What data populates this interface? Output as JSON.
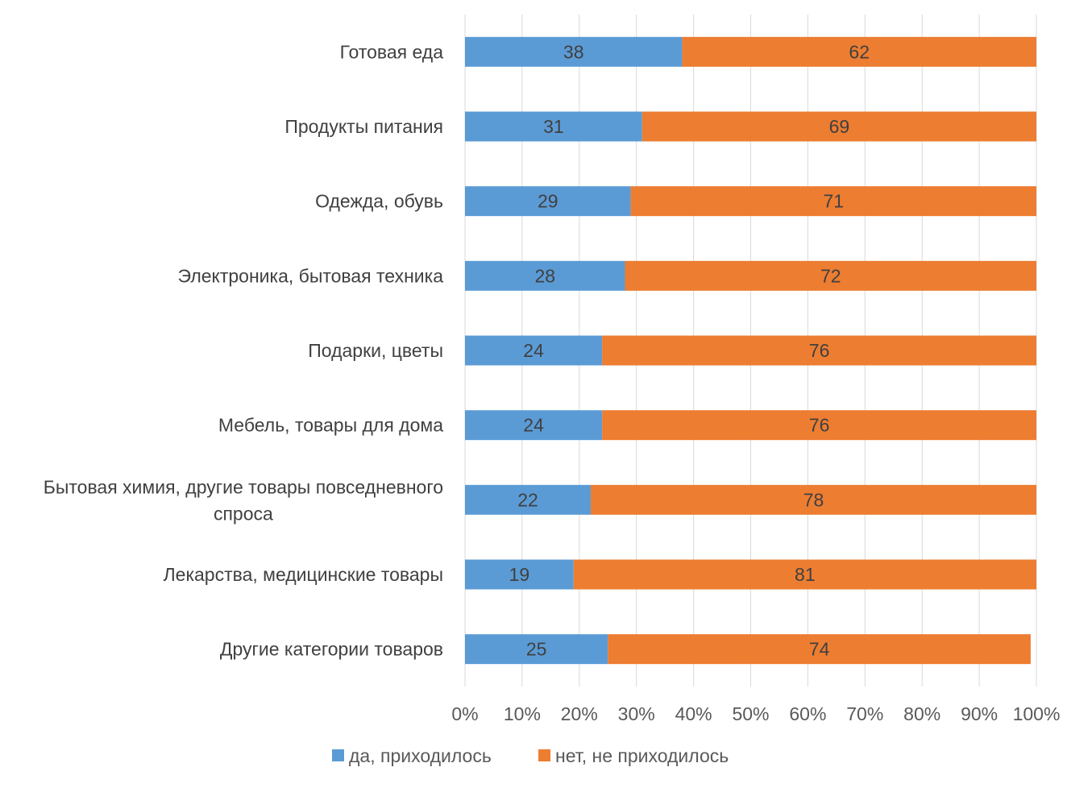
{
  "chart_data": {
    "type": "bar",
    "orientation": "horizontal",
    "stacked": "percent",
    "categories": [
      "Готовая еда",
      "Продукты питания",
      "Одежда, обувь",
      "Электроника, бытовая техника",
      "Подарки, цветы",
      "Мебель, товары для дома",
      "Бытовая химия, другие товары повседневного спроса",
      "Лекарства, медицинские товары",
      "Другие категории товаров"
    ],
    "series": [
      {
        "name": "да, приходилось",
        "color": "#5B9BD5",
        "values": [
          38,
          31,
          29,
          28,
          24,
          24,
          22,
          19,
          25
        ]
      },
      {
        "name": "нет, не приходилось",
        "color": "#ED7D31",
        "values": [
          62,
          69,
          71,
          72,
          76,
          76,
          78,
          81,
          74
        ]
      }
    ],
    "x_ticks": [
      "0%",
      "10%",
      "20%",
      "30%",
      "40%",
      "50%",
      "60%",
      "70%",
      "80%",
      "90%",
      "100%"
    ],
    "xlim": [
      0,
      100
    ],
    "grid": "vertical",
    "legend": "bottom",
    "data_labels": true,
    "title": "",
    "xlabel": "",
    "ylabel": ""
  }
}
